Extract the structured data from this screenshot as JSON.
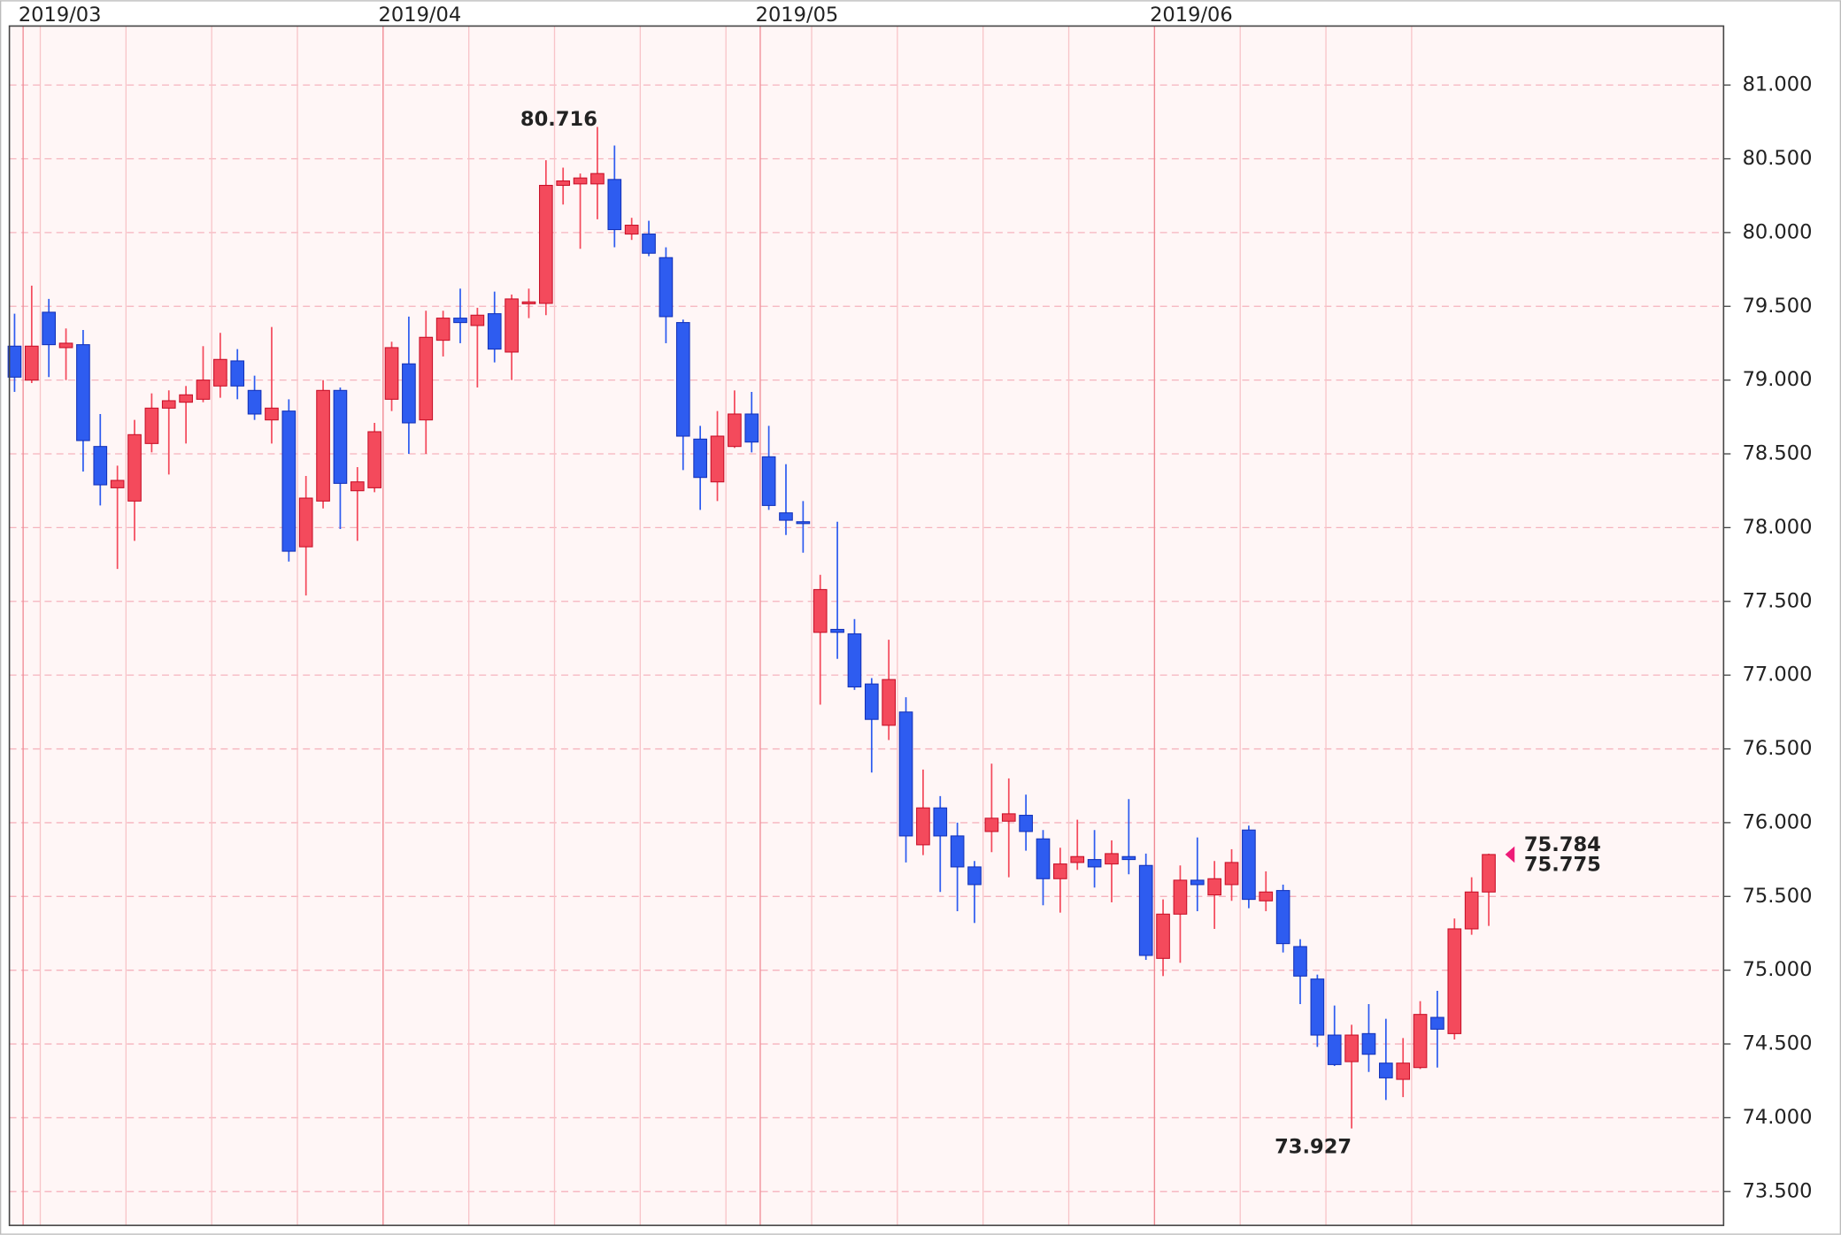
{
  "chart_data": {
    "type": "candlestick",
    "categories": [
      null,
      "2019/03",
      null,
      null,
      null,
      null,
      null,
      null,
      null,
      null,
      null,
      null,
      null,
      null,
      null,
      null,
      null,
      null,
      null,
      null,
      null,
      null,
      "2019/04",
      null,
      null,
      null,
      null,
      null,
      null,
      null,
      null,
      null,
      null,
      null,
      null,
      null,
      null,
      null,
      null,
      null,
      null,
      null,
      null,
      null,
      "2019/05",
      null,
      null,
      null,
      null,
      null,
      null,
      null,
      null,
      null,
      null,
      null,
      null,
      null,
      null,
      null,
      null,
      null,
      null,
      null,
      null,
      null,
      null,
      "2019/06",
      null,
      null,
      null,
      null,
      null,
      null,
      null,
      null,
      null,
      null,
      null,
      null,
      null,
      null,
      null,
      null,
      null,
      null,
      null
    ],
    "open": [
      79.23,
      79.0,
      79.46,
      79.22,
      79.24,
      78.55,
      78.27,
      78.18,
      78.57,
      78.81,
      78.85,
      78.87,
      78.96,
      79.13,
      78.93,
      78.73,
      78.79,
      77.87,
      78.18,
      78.93,
      78.25,
      78.27,
      78.87,
      79.11,
      78.73,
      79.27,
      79.42,
      79.37,
      79.45,
      79.19,
      79.52,
      79.52,
      80.32,
      80.33,
      80.33,
      80.36,
      79.99,
      79.99,
      79.83,
      79.39,
      78.6,
      78.31,
      78.55,
      78.77,
      78.48,
      78.1,
      78.04,
      77.29,
      77.31,
      77.28,
      76.94,
      76.66,
      76.75,
      75.85,
      76.1,
      75.91,
      75.7,
      75.94,
      76.01,
      76.05,
      75.89,
      75.62,
      75.73,
      75.75,
      75.72,
      75.77,
      75.71,
      75.08,
      75.38,
      75.61,
      75.51,
      75.58,
      75.95,
      75.47,
      75.54,
      75.16,
      74.94,
      74.56,
      74.38,
      74.57,
      74.37,
      74.26,
      74.34,
      74.68,
      74.57,
      75.28,
      75.53
    ],
    "high": [
      79.45,
      79.64,
      79.55,
      79.35,
      79.34,
      78.77,
      78.42,
      78.73,
      78.91,
      78.93,
      78.96,
      79.23,
      79.32,
      79.21,
      79.03,
      79.36,
      78.87,
      78.35,
      79.0,
      78.95,
      78.41,
      78.71,
      79.26,
      79.43,
      79.47,
      79.47,
      79.62,
      79.49,
      79.6,
      79.58,
      79.62,
      80.49,
      80.44,
      80.4,
      80.716,
      80.59,
      80.1,
      80.08,
      79.9,
      79.41,
      78.69,
      78.79,
      78.93,
      78.92,
      78.69,
      78.43,
      78.18,
      77.68,
      78.04,
      77.38,
      76.98,
      77.24,
      76.85,
      76.36,
      76.18,
      76.0,
      75.74,
      76.4,
      76.3,
      76.19,
      75.95,
      75.83,
      76.02,
      75.95,
      75.88,
      76.16,
      75.79,
      75.48,
      75.71,
      75.9,
      75.74,
      75.82,
      75.98,
      75.67,
      75.58,
      75.21,
      74.97,
      74.76,
      74.63,
      74.77,
      74.67,
      74.54,
      74.79,
      74.86,
      75.35,
      75.63,
      75.79
    ],
    "low": [
      78.92,
      78.98,
      79.02,
      79.0,
      78.38,
      78.15,
      77.72,
      77.91,
      78.51,
      78.36,
      78.57,
      78.85,
      78.88,
      78.87,
      78.73,
      78.57,
      77.77,
      77.54,
      78.13,
      77.99,
      77.91,
      78.24,
      78.79,
      78.5,
      78.5,
      79.16,
      79.25,
      78.95,
      79.12,
      79.0,
      79.42,
      79.44,
      80.19,
      79.89,
      80.09,
      79.9,
      79.95,
      79.84,
      79.25,
      78.39,
      78.12,
      78.18,
      78.54,
      78.51,
      78.12,
      77.95,
      77.83,
      76.8,
      77.11,
      76.9,
      76.34,
      76.56,
      75.73,
      75.78,
      75.53,
      75.4,
      75.32,
      75.8,
      75.63,
      75.81,
      75.44,
      75.39,
      75.68,
      75.56,
      75.46,
      75.65,
      75.07,
      74.96,
      75.05,
      75.4,
      75.28,
      75.47,
      75.42,
      75.4,
      75.12,
      74.77,
      74.48,
      74.35,
      73.927,
      74.31,
      74.12,
      74.14,
      74.33,
      74.34,
      74.53,
      75.24,
      75.3
    ],
    "close": [
      79.02,
      79.23,
      79.24,
      79.25,
      78.59,
      78.29,
      78.32,
      78.63,
      78.81,
      78.86,
      78.9,
      79.0,
      79.14,
      78.96,
      78.77,
      78.81,
      77.84,
      78.2,
      78.93,
      78.3,
      78.31,
      78.65,
      79.22,
      78.71,
      79.29,
      79.42,
      79.39,
      79.44,
      79.21,
      79.55,
      79.53,
      80.32,
      80.35,
      80.37,
      80.4,
      80.02,
      80.05,
      79.86,
      79.43,
      78.62,
      78.34,
      78.62,
      78.77,
      78.58,
      78.15,
      78.05,
      78.03,
      77.58,
      77.29,
      76.92,
      76.7,
      76.97,
      75.91,
      76.1,
      75.91,
      75.7,
      75.58,
      76.03,
      76.06,
      75.94,
      75.62,
      75.72,
      75.77,
      75.7,
      75.79,
      75.75,
      75.1,
      75.38,
      75.61,
      75.58,
      75.62,
      75.73,
      75.48,
      75.53,
      75.18,
      74.96,
      74.56,
      74.36,
      74.56,
      74.43,
      74.27,
      74.37,
      74.7,
      74.6,
      75.28,
      75.53,
      75.784
    ],
    "ask": 75.775,
    "up_color": "#f44a5c",
    "down_color": "#2e5cf0",
    "bid_color": "#ee1a78",
    "ask_color": "#1ab8ee",
    "extreme_color": "#e8101c",
    "ylim": [
      73.27,
      81.4
    ],
    "yticks": [
      {
        "value": 73.5,
        "label": "73.500"
      },
      {
        "value": 74,
        "label": "74.000"
      },
      {
        "value": 74.5,
        "label": "74.500"
      },
      {
        "value": 75,
        "label": "75.000"
      },
      {
        "value": 75.5,
        "label": "75.500"
      },
      {
        "value": 76,
        "label": "76.000"
      },
      {
        "value": 76.5,
        "label": "76.500"
      },
      {
        "value": 77,
        "label": "77.000"
      },
      {
        "value": 77.5,
        "label": "77.500"
      },
      {
        "value": 78,
        "label": "78.000"
      },
      {
        "value": 78.5,
        "label": "78.500"
      },
      {
        "value": 79,
        "label": "79.000"
      },
      {
        "value": 79.5,
        "label": "79.500"
      },
      {
        "value": 80,
        "label": "80.000"
      },
      {
        "value": 80.5,
        "label": "80.500"
      },
      {
        "value": 81,
        "label": "81.000"
      }
    ],
    "grid": true
  }
}
